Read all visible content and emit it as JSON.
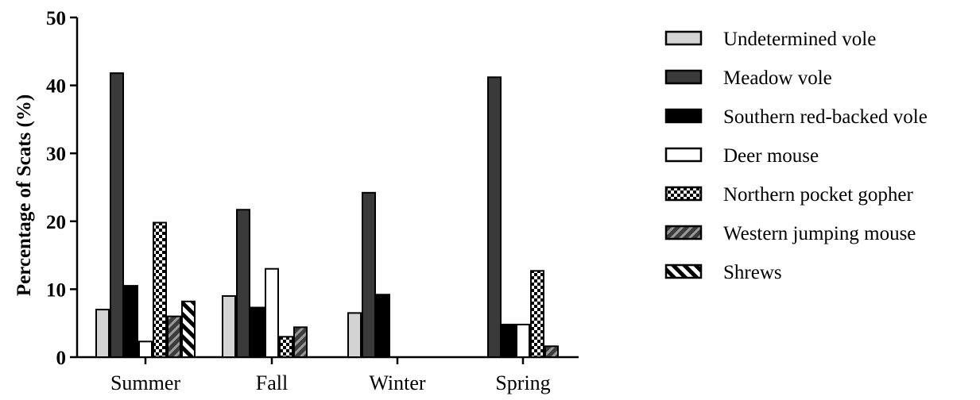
{
  "chart_data": {
    "type": "bar",
    "title": "",
    "xlabel": "",
    "ylabel": "Percentage of Scats (%)",
    "ylim": [
      0,
      50
    ],
    "yticks": [
      "0",
      "10",
      "20",
      "30",
      "40",
      "50"
    ],
    "legend_position": "right",
    "grid": false,
    "categories": [
      "Summer",
      "Fall",
      "Winter",
      "Spring"
    ],
    "series": [
      {
        "name": "Undetermined vole",
        "values": [
          7.0,
          9.0,
          6.5,
          0
        ],
        "fill": "#d3d3d3",
        "pattern": "solid"
      },
      {
        "name": "Meadow vole",
        "values": [
          41.8,
          21.7,
          24.2,
          41.2
        ],
        "fill": "#3a3a3a",
        "pattern": "solid"
      },
      {
        "name": "Southern red-backed vole",
        "values": [
          10.5,
          7.3,
          9.2,
          4.8
        ],
        "fill": "#000000",
        "pattern": "solid"
      },
      {
        "name": "Deer mouse",
        "values": [
          2.3,
          13.0,
          0,
          4.8
        ],
        "fill": "#ffffff",
        "pattern": "solid"
      },
      {
        "name": "Northern pocket gopher",
        "values": [
          19.8,
          3.0,
          0,
          12.7
        ],
        "fill": "#000000",
        "pattern": "checker"
      },
      {
        "name": "Western jumping mouse",
        "values": [
          6.0,
          4.4,
          0,
          1.6
        ],
        "fill": "#555555",
        "pattern": "hatch-dark"
      },
      {
        "name": "Shrews",
        "values": [
          8.2,
          0,
          0,
          0
        ],
        "fill": "#000000",
        "pattern": "hatch-light"
      }
    ]
  }
}
